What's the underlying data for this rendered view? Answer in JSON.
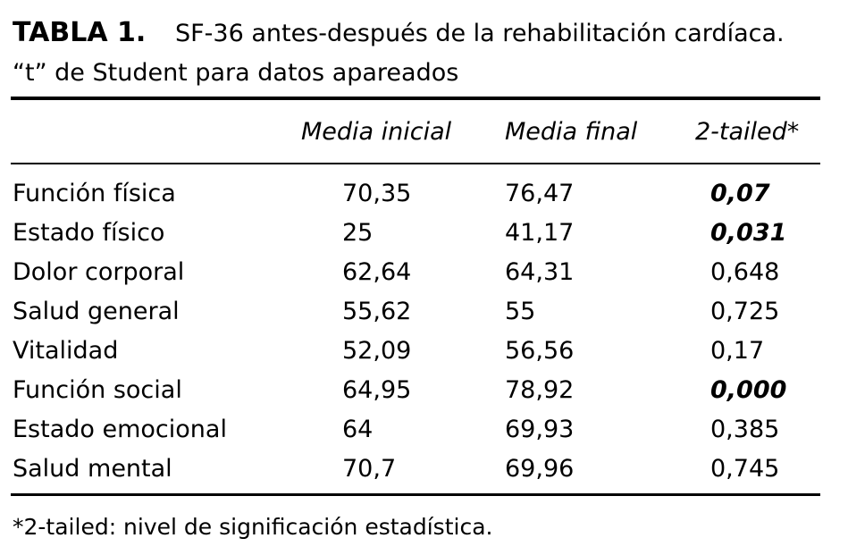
{
  "title": {
    "label": "TABLA 1.",
    "text": "SF-36 antes-después de la rehabilitación cardíaca.",
    "subtitle": "“t” de Student para datos apareados"
  },
  "table": {
    "columns": [
      "Media inicial",
      "Media final",
      "2-tailed*"
    ],
    "rows": [
      [
        "Función física",
        "70,35",
        "76,47",
        "0,07"
      ],
      [
        "Estado físico",
        "25",
        "41,17",
        "0,031"
      ],
      [
        "Dolor corporal",
        "62,64",
        "64,31",
        "0,648"
      ],
      [
        "Salud general",
        "55,62",
        "55",
        "0,725"
      ],
      [
        "Vitalidad",
        "52,09",
        "56,56",
        "0,17"
      ],
      [
        "Función social",
        "64,95",
        "78,92",
        "0,000"
      ],
      [
        "Estado emocional",
        "64",
        "69,93",
        "0,385"
      ],
      [
        "Salud mental",
        "70,7",
        "69,96",
        "0,745"
      ]
    ]
  },
  "footnote": "*2-tailed: nivel de significación estadística."
}
